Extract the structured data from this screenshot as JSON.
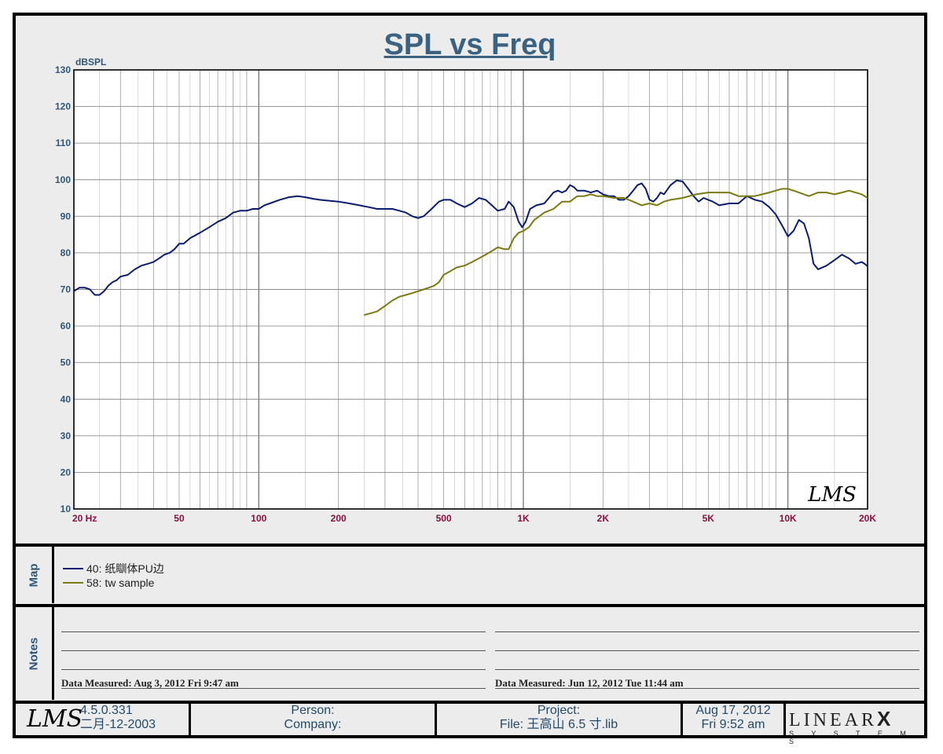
{
  "chart_data": {
    "type": "line",
    "title": "SPL vs Freq",
    "ylabel": "dBSPL",
    "x_scale": "log",
    "xlim": [
      20,
      20000
    ],
    "ylim": [
      10,
      130
    ],
    "y_ticks": [
      10,
      20,
      30,
      40,
      50,
      60,
      70,
      80,
      90,
      100,
      110,
      120,
      130
    ],
    "x_tick_labels": [
      {
        "value": 20,
        "label": "20  Hz"
      },
      {
        "value": 50,
        "label": "50"
      },
      {
        "value": 100,
        "label": "100"
      },
      {
        "value": 200,
        "label": "200"
      },
      {
        "value": 500,
        "label": "500"
      },
      {
        "value": 1000,
        "label": "1K"
      },
      {
        "value": 2000,
        "label": "2K"
      },
      {
        "value": 5000,
        "label": "5K"
      },
      {
        "value": 10000,
        "label": "10K"
      },
      {
        "value": 20000,
        "label": "20K"
      }
    ],
    "grid": true,
    "series": [
      {
        "name": "40: 纸瞓体PU边",
        "color": "#0a1c6e",
        "points": [
          [
            20,
            69.5
          ],
          [
            21,
            70.5
          ],
          [
            22,
            70.5
          ],
          [
            23,
            70.0
          ],
          [
            24,
            68.5
          ],
          [
            25,
            68.5
          ],
          [
            26,
            69.5
          ],
          [
            27,
            71.0
          ],
          [
            28,
            72.0
          ],
          [
            29,
            72.5
          ],
          [
            30,
            73.5
          ],
          [
            32,
            74.0
          ],
          [
            34,
            75.5
          ],
          [
            36,
            76.5
          ],
          [
            38,
            77.0
          ],
          [
            40,
            77.5
          ],
          [
            42,
            78.5
          ],
          [
            44,
            79.5
          ],
          [
            46,
            80.0
          ],
          [
            48,
            81.0
          ],
          [
            50,
            82.5
          ],
          [
            52,
            82.5
          ],
          [
            55,
            84.0
          ],
          [
            60,
            85.5
          ],
          [
            65,
            87.0
          ],
          [
            70,
            88.5
          ],
          [
            75,
            89.5
          ],
          [
            80,
            91.0
          ],
          [
            85,
            91.5
          ],
          [
            90,
            91.5
          ],
          [
            95,
            92.0
          ],
          [
            100,
            92.0
          ],
          [
            105,
            93.0
          ],
          [
            110,
            93.5
          ],
          [
            120,
            94.5
          ],
          [
            130,
            95.2
          ],
          [
            140,
            95.5
          ],
          [
            150,
            95.2
          ],
          [
            160,
            94.8
          ],
          [
            170,
            94.5
          ],
          [
            180,
            94.3
          ],
          [
            200,
            94.0
          ],
          [
            220,
            93.5
          ],
          [
            240,
            93.0
          ],
          [
            260,
            92.5
          ],
          [
            280,
            92.0
          ],
          [
            300,
            92.0
          ],
          [
            320,
            92.0
          ],
          [
            340,
            91.5
          ],
          [
            360,
            91.0
          ],
          [
            380,
            90.0
          ],
          [
            400,
            89.5
          ],
          [
            420,
            90.0
          ],
          [
            450,
            92.0
          ],
          [
            480,
            94.0
          ],
          [
            500,
            94.5
          ],
          [
            530,
            94.5
          ],
          [
            560,
            93.5
          ],
          [
            600,
            92.5
          ],
          [
            640,
            93.5
          ],
          [
            680,
            95.0
          ],
          [
            720,
            94.5
          ],
          [
            760,
            93.0
          ],
          [
            800,
            91.5
          ],
          [
            850,
            92.0
          ],
          [
            880,
            94.0
          ],
          [
            920,
            92.5
          ],
          [
            960,
            88.5
          ],
          [
            990,
            87.0
          ],
          [
            1020,
            88.5
          ],
          [
            1060,
            92.0
          ],
          [
            1120,
            93.0
          ],
          [
            1200,
            93.5
          ],
          [
            1250,
            95.0
          ],
          [
            1300,
            96.5
          ],
          [
            1350,
            97.0
          ],
          [
            1400,
            96.5
          ],
          [
            1450,
            97.0
          ],
          [
            1500,
            98.5
          ],
          [
            1550,
            98.0
          ],
          [
            1600,
            97.0
          ],
          [
            1700,
            97.0
          ],
          [
            1800,
            96.5
          ],
          [
            1900,
            97.0
          ],
          [
            2000,
            96.0
          ],
          [
            2100,
            95.5
          ],
          [
            2200,
            95.5
          ],
          [
            2300,
            94.5
          ],
          [
            2400,
            94.5
          ],
          [
            2500,
            95.5
          ],
          [
            2600,
            97.0
          ],
          [
            2700,
            98.5
          ],
          [
            2800,
            99.0
          ],
          [
            2900,
            97.5
          ],
          [
            3000,
            94.5
          ],
          [
            3100,
            94.0
          ],
          [
            3200,
            95.0
          ],
          [
            3300,
            96.5
          ],
          [
            3400,
            96.0
          ],
          [
            3600,
            98.5
          ],
          [
            3800,
            99.8
          ],
          [
            4000,
            99.5
          ],
          [
            4200,
            97.5
          ],
          [
            4400,
            95.5
          ],
          [
            4600,
            94.0
          ],
          [
            4800,
            95.0
          ],
          [
            5000,
            94.5
          ],
          [
            5200,
            94.0
          ],
          [
            5500,
            93.0
          ],
          [
            6000,
            93.5
          ],
          [
            6500,
            93.5
          ],
          [
            7000,
            95.5
          ],
          [
            7500,
            94.5
          ],
          [
            8000,
            94.0
          ],
          [
            8500,
            92.5
          ],
          [
            9000,
            90.5
          ],
          [
            9500,
            87.5
          ],
          [
            10000,
            84.5
          ],
          [
            10500,
            86.0
          ],
          [
            11000,
            89.0
          ],
          [
            11500,
            88.0
          ],
          [
            12000,
            84.0
          ],
          [
            12500,
            77.0
          ],
          [
            13000,
            75.5
          ],
          [
            14000,
            76.5
          ],
          [
            15000,
            78.0
          ],
          [
            16000,
            79.5
          ],
          [
            17000,
            78.5
          ],
          [
            18000,
            77.0
          ],
          [
            19000,
            77.5
          ],
          [
            19500,
            77.0
          ],
          [
            21000,
            75.0
          ],
          [
            22500,
            72.0
          ],
          [
            24000,
            70.0
          ],
          [
            25500,
            69.5
          ],
          [
            27000,
            68.5
          ]
        ]
      },
      {
        "name": "58: tw sample",
        "color": "#7a7a10",
        "points": [
          [
            250,
            63.0
          ],
          [
            265,
            63.5
          ],
          [
            280,
            64.0
          ],
          [
            300,
            65.5
          ],
          [
            320,
            67.0
          ],
          [
            340,
            68.0
          ],
          [
            360,
            68.5
          ],
          [
            380,
            69.0
          ],
          [
            400,
            69.5
          ],
          [
            420,
            70.0
          ],
          [
            440,
            70.5
          ],
          [
            460,
            71.0
          ],
          [
            480,
            72.0
          ],
          [
            500,
            74.0
          ],
          [
            530,
            75.0
          ],
          [
            560,
            76.0
          ],
          [
            600,
            76.5
          ],
          [
            640,
            77.5
          ],
          [
            680,
            78.5
          ],
          [
            720,
            79.5
          ],
          [
            760,
            80.5
          ],
          [
            800,
            81.5
          ],
          [
            850,
            81.0
          ],
          [
            880,
            81.0
          ],
          [
            920,
            84.0
          ],
          [
            960,
            85.5
          ],
          [
            1000,
            86.0
          ],
          [
            1050,
            87.0
          ],
          [
            1100,
            89.0
          ],
          [
            1150,
            90.0
          ],
          [
            1200,
            91.0
          ],
          [
            1300,
            92.0
          ],
          [
            1400,
            94.0
          ],
          [
            1500,
            94.0
          ],
          [
            1600,
            95.5
          ],
          [
            1700,
            95.5
          ],
          [
            1800,
            96.0
          ],
          [
            1900,
            95.5
          ],
          [
            2000,
            95.5
          ],
          [
            2200,
            95.0
          ],
          [
            2400,
            95.0
          ],
          [
            2600,
            94.0
          ],
          [
            2800,
            93.0
          ],
          [
            3000,
            93.5
          ],
          [
            3200,
            93.0
          ],
          [
            3400,
            94.0
          ],
          [
            3600,
            94.5
          ],
          [
            4000,
            95.0
          ],
          [
            4500,
            96.0
          ],
          [
            5000,
            96.5
          ],
          [
            5500,
            96.5
          ],
          [
            6000,
            96.5
          ],
          [
            6500,
            95.5
          ],
          [
            7000,
            95.5
          ],
          [
            7500,
            95.5
          ],
          [
            8000,
            96.0
          ],
          [
            8500,
            96.5
          ],
          [
            9000,
            97.0
          ],
          [
            9500,
            97.5
          ],
          [
            10000,
            97.5
          ],
          [
            10500,
            97.0
          ],
          [
            11000,
            96.5
          ],
          [
            12000,
            95.5
          ],
          [
            13000,
            96.5
          ],
          [
            14000,
            96.5
          ],
          [
            15000,
            96.0
          ],
          [
            16000,
            96.5
          ],
          [
            17000,
            97.0
          ],
          [
            18000,
            96.5
          ],
          [
            19000,
            96.0
          ],
          [
            20000,
            95.0
          ],
          [
            22000,
            93.0
          ],
          [
            24000,
            91.0
          ],
          [
            26000,
            92.0
          ],
          [
            27000,
            92.0
          ]
        ]
      }
    ]
  },
  "map": {
    "label": "Map",
    "entries": [
      {
        "text": "40: 纸瞓体PU边",
        "color": "#0a1c6e"
      },
      {
        "text": "58: tw sample",
        "color": "#7a7a10"
      }
    ]
  },
  "notes": {
    "label": "Notes",
    "left_measured": "Data Measured: Aug  3, 2012  Fri  9:47 am",
    "right_measured": "Data Measured: Jun 12, 2012  Tue 11:44 am"
  },
  "footer": {
    "logo_text": "LMS",
    "version": "4.5.0.331",
    "build_date": "二月-12-2003",
    "person_label": "Person:",
    "company_label": "Company:",
    "project_label": "Project:",
    "file_label": "File: 王高山   6.5   寸.lib",
    "date": "Aug 17, 2012",
    "time": "Fri  9:52 am",
    "brand_top": "LINEAR",
    "brand_x": "X",
    "brand_bottom": "S Y S T E M S"
  },
  "watermark": "LMS"
}
